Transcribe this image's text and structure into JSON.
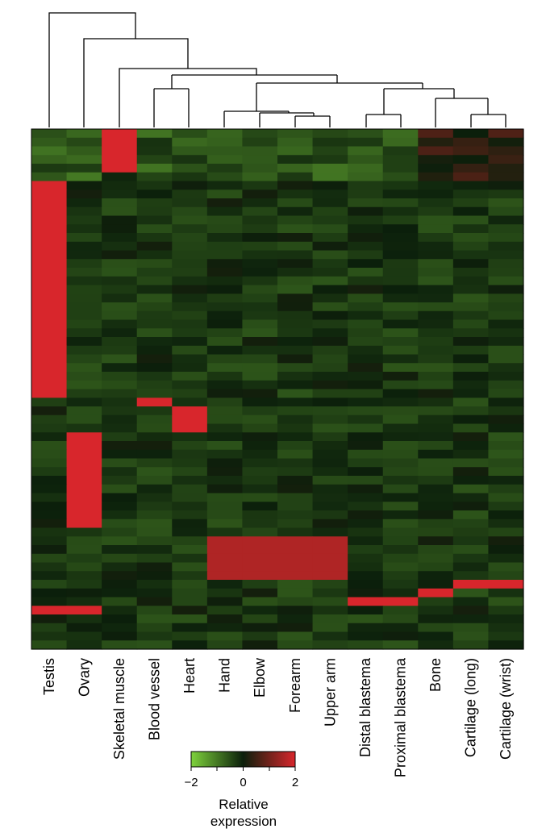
{
  "chart_data": {
    "type": "heatmap",
    "title": "",
    "columns": [
      "Testis",
      "Ovary",
      "Skeletal muscle",
      "Blood vessel",
      "Heart",
      "Hand",
      "Elbow",
      "Forearm",
      "Upper arm",
      "Distal blastema",
      "Proximal blastema",
      "Bone",
      "Cartilage (long)",
      "Cartilage (wrist)"
    ],
    "color_scale": {
      "min": -2,
      "max": 2,
      "ticks": [
        "−2",
        "0",
        "2"
      ],
      "colors": [
        "#7ed23c",
        "#0b1f0b",
        "#d8262c"
      ],
      "label_line1": "Relative",
      "label_line2": "expression"
    },
    "approx_block_pattern": {
      "rows": 60,
      "blocks": [
        {
          "column": "Testis",
          "rows": [
            6,
            31
          ],
          "value": 2
        },
        {
          "column": "Testis",
          "rows": [
            55,
            56
          ],
          "value": 2
        },
        {
          "column": "Ovary",
          "rows": [
            35,
            46
          ],
          "value": 2
        },
        {
          "column": "Ovary",
          "rows": [
            55,
            56
          ],
          "value": 2
        },
        {
          "column": "Skeletal muscle",
          "rows": [
            0,
            5
          ],
          "value": 2
        },
        {
          "column": "Blood vessel",
          "rows": [
            31,
            32
          ],
          "value": 2
        },
        {
          "column": "Heart",
          "rows": [
            32,
            35
          ],
          "value": 2
        },
        {
          "column": "Hand",
          "rows": [
            47,
            52
          ],
          "value": 1.6
        },
        {
          "column": "Elbow",
          "rows": [
            47,
            52
          ],
          "value": 1.6
        },
        {
          "column": "Forearm",
          "rows": [
            47,
            52
          ],
          "value": 1.6
        },
        {
          "column": "Upper arm",
          "rows": [
            47,
            52
          ],
          "value": 1.6
        },
        {
          "column": "Distal blastema",
          "rows": [
            54,
            55
          ],
          "value": 2
        },
        {
          "column": "Proximal blastema",
          "rows": [
            54,
            55
          ],
          "value": 2
        },
        {
          "column": "Bone",
          "rows": [
            53,
            54
          ],
          "value": 2
        },
        {
          "column": "Cartilage (long)",
          "rows": [
            52,
            53
          ],
          "value": 2
        },
        {
          "column": "Cartilage (wrist)",
          "rows": [
            52,
            53
          ],
          "value": 2
        }
      ]
    }
  }
}
